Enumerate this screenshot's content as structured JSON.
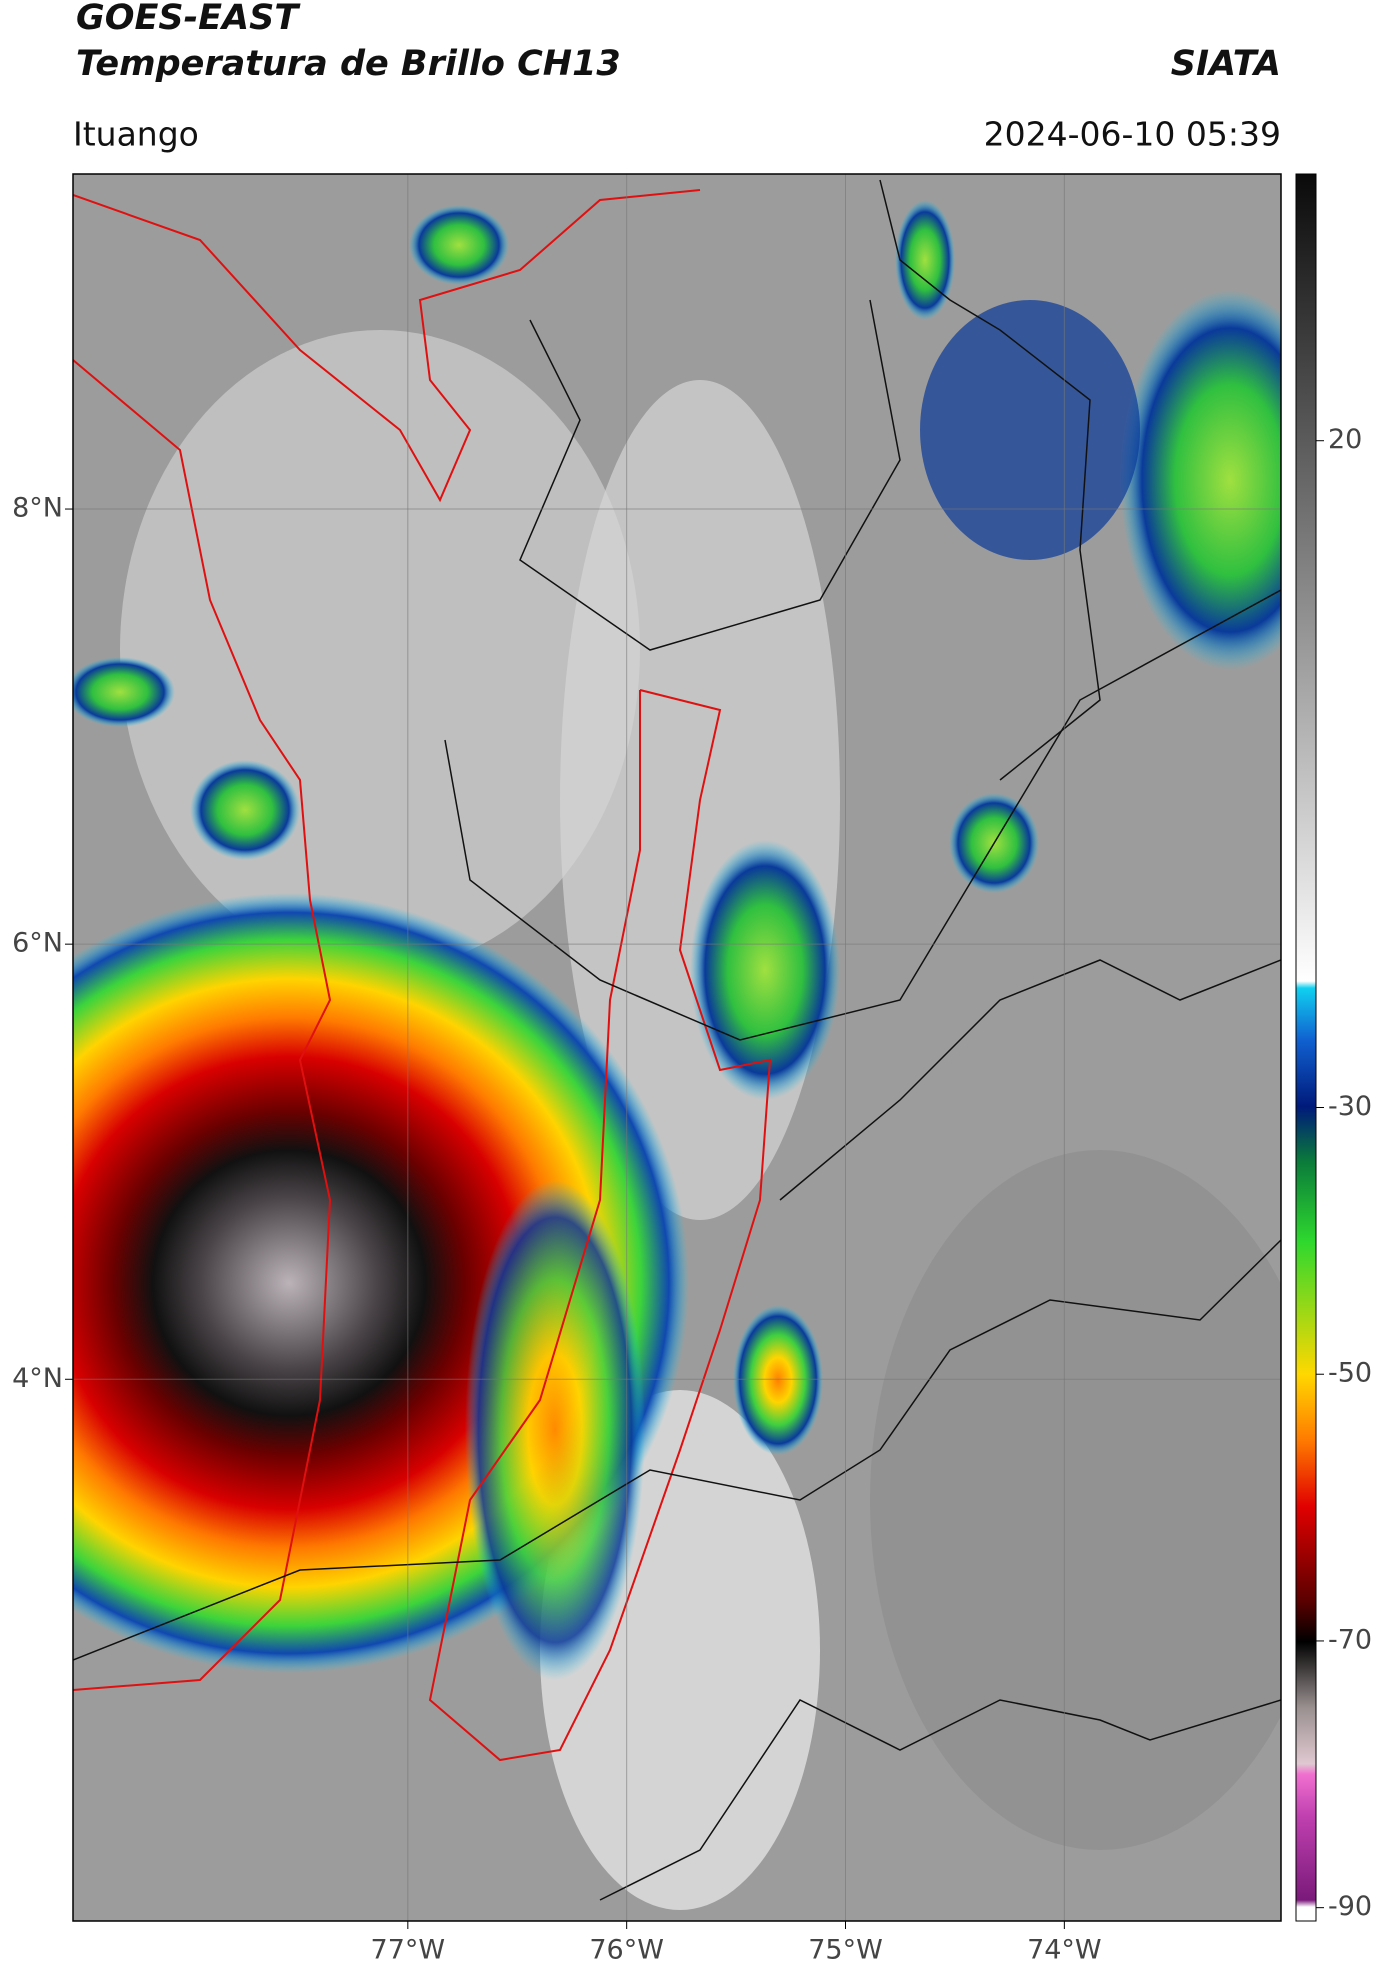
{
  "header": {
    "title": "GOES-EAST",
    "subtitle": "Temperatura de Brillo CH13",
    "source": "SIATA",
    "region": "Ituango",
    "datetime": "2024-06-10 05:39"
  },
  "chart_data": {
    "type": "map",
    "xlim": [
      -78.53,
      -73.01
    ],
    "ylim": [
      1.51,
      9.54
    ],
    "xticks": [
      {
        "value": -77,
        "label": "77°W"
      },
      {
        "value": -76,
        "label": "76°W"
      },
      {
        "value": -75,
        "label": "75°W"
      },
      {
        "value": -74,
        "label": "74°W"
      }
    ],
    "yticks": [
      {
        "value": 4,
        "label": "4°N"
      },
      {
        "value": 6,
        "label": "6°N"
      },
      {
        "value": 8,
        "label": "8°N"
      }
    ],
    "grid": true,
    "colorbar": {
      "lim": [
        -91,
        40
      ],
      "ticks": [
        -90,
        -70,
        -50,
        -30,
        20
      ]
    }
  }
}
